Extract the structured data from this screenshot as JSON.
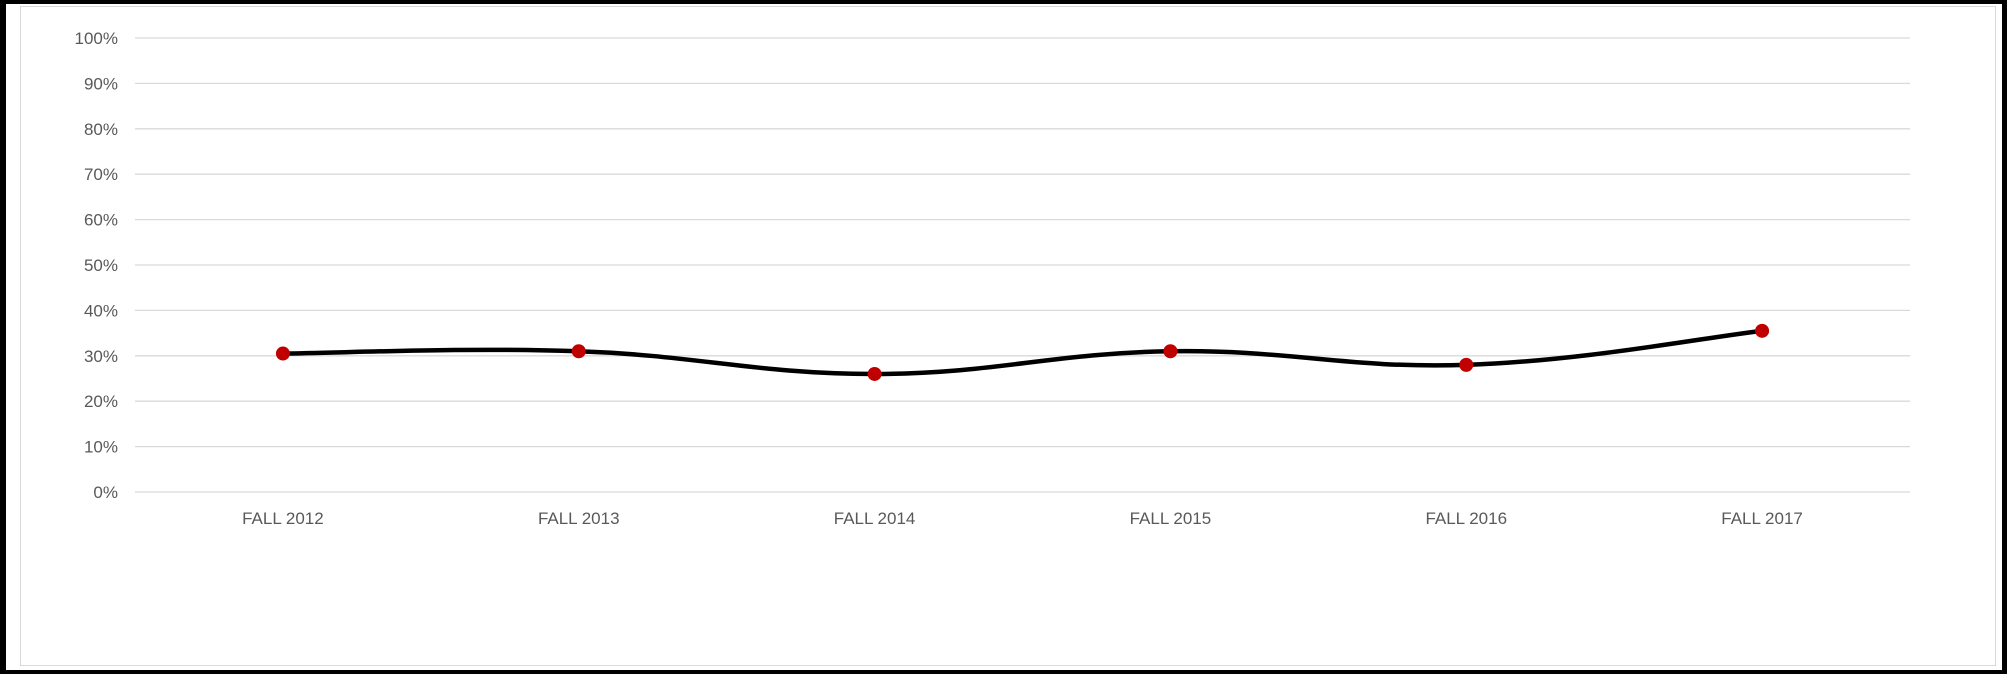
{
  "chart_data": {
    "type": "line",
    "smooth": true,
    "title": "",
    "xlabel": "",
    "ylabel": "",
    "categories": [
      "FALL 2012",
      "FALL 2013",
      "FALL 2014",
      "FALL 2015",
      "FALL 2016",
      "FALL 2017"
    ],
    "series": [
      {
        "values": [
          30.5,
          31,
          26,
          31,
          28,
          35.5
        ]
      }
    ],
    "ylim": [
      0,
      100
    ],
    "yticks": [
      0,
      10,
      20,
      30,
      40,
      50,
      60,
      70,
      80,
      90,
      100
    ],
    "ytick_labels": [
      "0%",
      "10%",
      "20%",
      "30%",
      "40%",
      "50%",
      "60%",
      "70%",
      "80%",
      "90%",
      "100%"
    ],
    "grid": true,
    "legend": "none",
    "colors": {
      "line": "#000000",
      "marker": "#c00000",
      "grid": "#d9d9d9",
      "tick_text": "#595959"
    }
  }
}
